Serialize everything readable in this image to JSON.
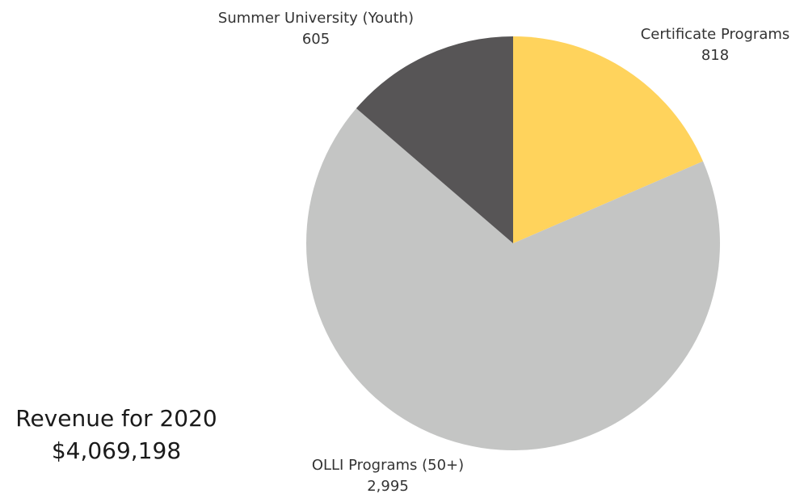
{
  "summary": {
    "title": "Revenue for 2020",
    "value": "$4,069,198"
  },
  "chart_data": {
    "type": "pie",
    "title": "",
    "start_angle_deg": 0,
    "direction": "clockwise",
    "slices": [
      {
        "label": "Certificate Programs",
        "value": 818,
        "value_label": "818",
        "color": "#FFD35C"
      },
      {
        "label": "OLLI Programs (50+)",
        "value": 2995,
        "value_label": "2,995",
        "color": "#C4C5C4"
      },
      {
        "label": "Summer University (Youth)",
        "value": 605,
        "value_label": "605",
        "color": "#575556"
      }
    ]
  }
}
